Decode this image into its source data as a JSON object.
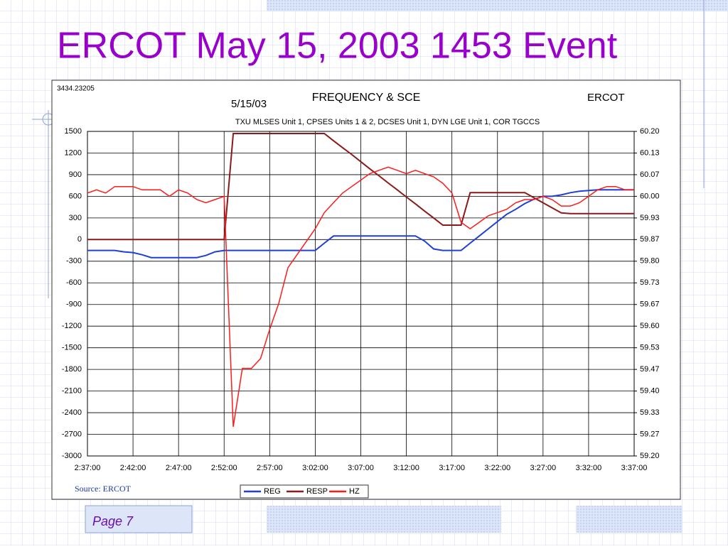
{
  "slide": {
    "title": "ERCOT May 15, 2003 1453 Event",
    "footer": "Page 7"
  },
  "chart_data": {
    "type": "line",
    "title": "FREQUENCY & SCE",
    "subtitle": "TXU MLSES Unit 1, CPSES Units 1 & 2, DCSES Unit 1, DYN LGE Unit 1, COR TGCCS",
    "annotations": [
      "3434.23205",
      "5/15/03",
      "ERCOT"
    ],
    "source": "Source: ERCOT",
    "x": [
      "2:37:00",
      null,
      null,
      null,
      null,
      "2:42:00",
      null,
      null,
      null,
      null,
      "2:47:00",
      null,
      null,
      null,
      null,
      "2:52:00",
      null,
      null,
      null,
      null,
      "2:57:00",
      null,
      null,
      null,
      null,
      "3:02:00",
      null,
      null,
      null,
      null,
      "3:07:00",
      null,
      null,
      null,
      null,
      "3:12:00",
      null,
      null,
      null,
      null,
      "3:17:00",
      null,
      null,
      null,
      null,
      "3:22:00",
      null,
      null,
      null,
      null,
      "3:27:00",
      null,
      null,
      null,
      null,
      "3:32:00",
      null,
      null,
      null,
      null,
      "3:37:00"
    ],
    "ylim": [
      -3000,
      1500
    ],
    "yticks": [
      1500,
      1200,
      900,
      600,
      300,
      0,
      -300,
      -600,
      -900,
      -1200,
      -1500,
      -1800,
      -2100,
      -2400,
      -2700,
      -3000
    ],
    "y2lim": [
      59.2,
      60.2
    ],
    "y2ticks": [
      {
        "value": 60.2,
        "label": "60.20"
      },
      {
        "value": 60.1333,
        "label": "60.13"
      },
      {
        "value": 60.0667,
        "label": "60.07"
      },
      {
        "value": 60.0,
        "label": "60.00"
      },
      {
        "value": 59.9333,
        "label": "59.93"
      },
      {
        "value": 59.8667,
        "label": "59.87"
      },
      {
        "value": 59.8,
        "label": "59.80"
      },
      {
        "value": 59.7333,
        "label": "59.73"
      },
      {
        "value": 59.6667,
        "label": "59.67"
      },
      {
        "value": 59.6,
        "label": "59.60"
      },
      {
        "value": 59.5333,
        "label": "59.53"
      },
      {
        "value": 59.4667,
        "label": "59.47"
      },
      {
        "value": 59.4,
        "label": "59.40"
      },
      {
        "value": 59.3333,
        "label": "59.33"
      },
      {
        "value": 59.2667,
        "label": "59.27"
      },
      {
        "value": 59.2,
        "label": "59.20"
      }
    ],
    "grid": true,
    "series": [
      {
        "name": "REG",
        "color": "#1f3fd6",
        "values": [
          -150,
          -150,
          -150,
          -150,
          -170,
          -180,
          -210,
          -250,
          -250,
          -250,
          -250,
          -250,
          -250,
          -220,
          -170,
          -150,
          -150,
          -150,
          -150,
          -150,
          -150,
          -150,
          -150,
          -150,
          -150,
          -150,
          -50,
          50,
          50,
          50,
          50,
          50,
          50,
          50,
          50,
          50,
          50,
          -20,
          -130,
          -150,
          -150,
          -150,
          -50,
          50,
          150,
          250,
          350,
          420,
          500,
          560,
          600,
          600,
          620,
          650,
          670,
          680,
          690,
          690,
          690,
          690,
          690
        ]
      },
      {
        "name": "RESP",
        "color": "#8b1a1a",
        "values": [
          0,
          0,
          0,
          0,
          0,
          0,
          0,
          0,
          0,
          0,
          0,
          0,
          0,
          0,
          0,
          0,
          1470,
          1470,
          1470,
          1470,
          1470,
          1470,
          1470,
          1470,
          1470,
          1470,
          1470,
          1370,
          1275,
          1180,
          1080,
          980,
          885,
          785,
          690,
          590,
          495,
          395,
          300,
          200,
          200,
          200,
          650,
          650,
          650,
          650,
          650,
          650,
          650,
          580,
          510,
          440,
          370,
          360,
          360,
          360,
          360,
          360,
          360,
          360,
          360
        ]
      },
      {
        "name": "HZ",
        "color": "#ff1a1a",
        "axis": "y2",
        "values": [
          60.01,
          60.02,
          60.01,
          60.03,
          60.03,
          60.03,
          60.02,
          60.02,
          60.02,
          60.0,
          60.02,
          60.01,
          59.99,
          59.98,
          59.99,
          60.0,
          59.29,
          59.47,
          59.47,
          59.5,
          59.59,
          59.67,
          59.78,
          59.82,
          59.86,
          59.9,
          59.95,
          59.98,
          60.01,
          60.03,
          60.05,
          60.07,
          60.08,
          60.09,
          60.08,
          60.07,
          60.08,
          60.07,
          60.06,
          60.04,
          60.01,
          59.92,
          59.9,
          59.92,
          59.94,
          59.95,
          59.96,
          59.98,
          59.99,
          59.99,
          60.0,
          59.99,
          59.97,
          59.97,
          59.98,
          60.0,
          60.02,
          60.03,
          60.03,
          60.02,
          60.02
        ]
      }
    ]
  }
}
